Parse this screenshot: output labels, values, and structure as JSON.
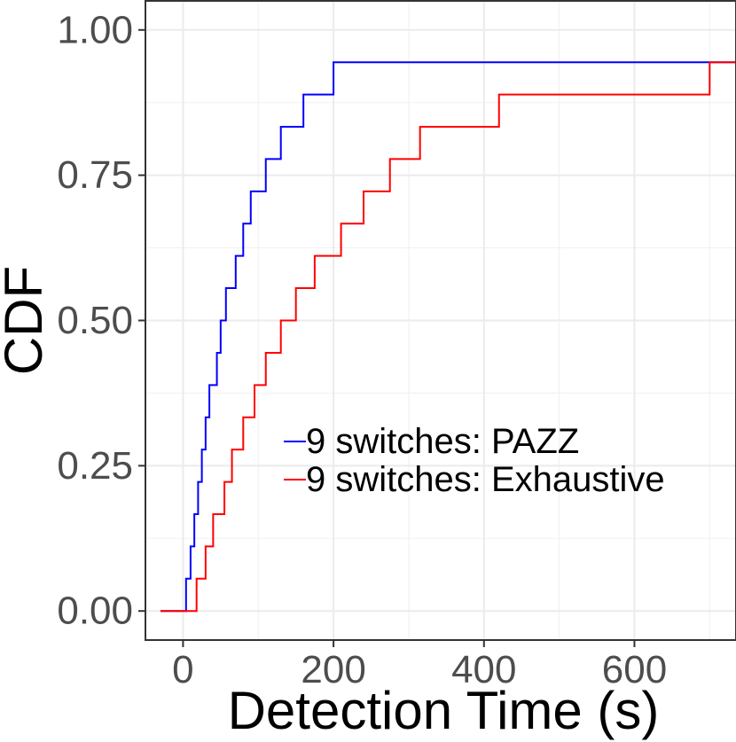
{
  "chart_data": {
    "type": "line",
    "step": true,
    "title": "",
    "xlabel": "Detection Time (s)",
    "ylabel": "CDF",
    "xlim": [
      -50,
      735
    ],
    "ylim": [
      -0.05,
      1.05
    ],
    "x_ticks": [
      0,
      200,
      400,
      600
    ],
    "y_ticks": [
      0.0,
      0.25,
      0.5,
      0.75,
      1.0
    ],
    "x_tick_labels": [
      "0",
      "200",
      "400",
      "600"
    ],
    "y_tick_labels": [
      "0.00",
      "0.25",
      "0.50",
      "0.75",
      "1.00"
    ],
    "grid": true,
    "legend_position": "inside-bottom-right",
    "series": [
      {
        "name": "9 switches: PAZZ",
        "color": "#0000ff",
        "x": [
          -30,
          4,
          10,
          15,
          20,
          25,
          30,
          35,
          45,
          50,
          57,
          70,
          80,
          90,
          110,
          130,
          160,
          200,
          735
        ],
        "y": [
          0.0,
          0.0556,
          0.1111,
          0.1667,
          0.2222,
          0.2778,
          0.3333,
          0.3889,
          0.4444,
          0.5,
          0.5556,
          0.6111,
          0.6667,
          0.7222,
          0.7778,
          0.8333,
          0.8889,
          0.9444,
          1.0
        ]
      },
      {
        "name": "9 switches: Exhaustive",
        "color": "#ff0000",
        "x": [
          -30,
          8,
          18,
          30,
          40,
          55,
          65,
          80,
          95,
          110,
          130,
          150,
          175,
          210,
          240,
          275,
          315,
          420,
          700,
          735
        ],
        "y": [
          0.0,
          0.0,
          0.0556,
          0.1111,
          0.1667,
          0.2222,
          0.2778,
          0.3333,
          0.3889,
          0.4444,
          0.5,
          0.5556,
          0.6111,
          0.6667,
          0.7222,
          0.7778,
          0.8333,
          0.8889,
          0.9444,
          1.0
        ]
      }
    ]
  }
}
